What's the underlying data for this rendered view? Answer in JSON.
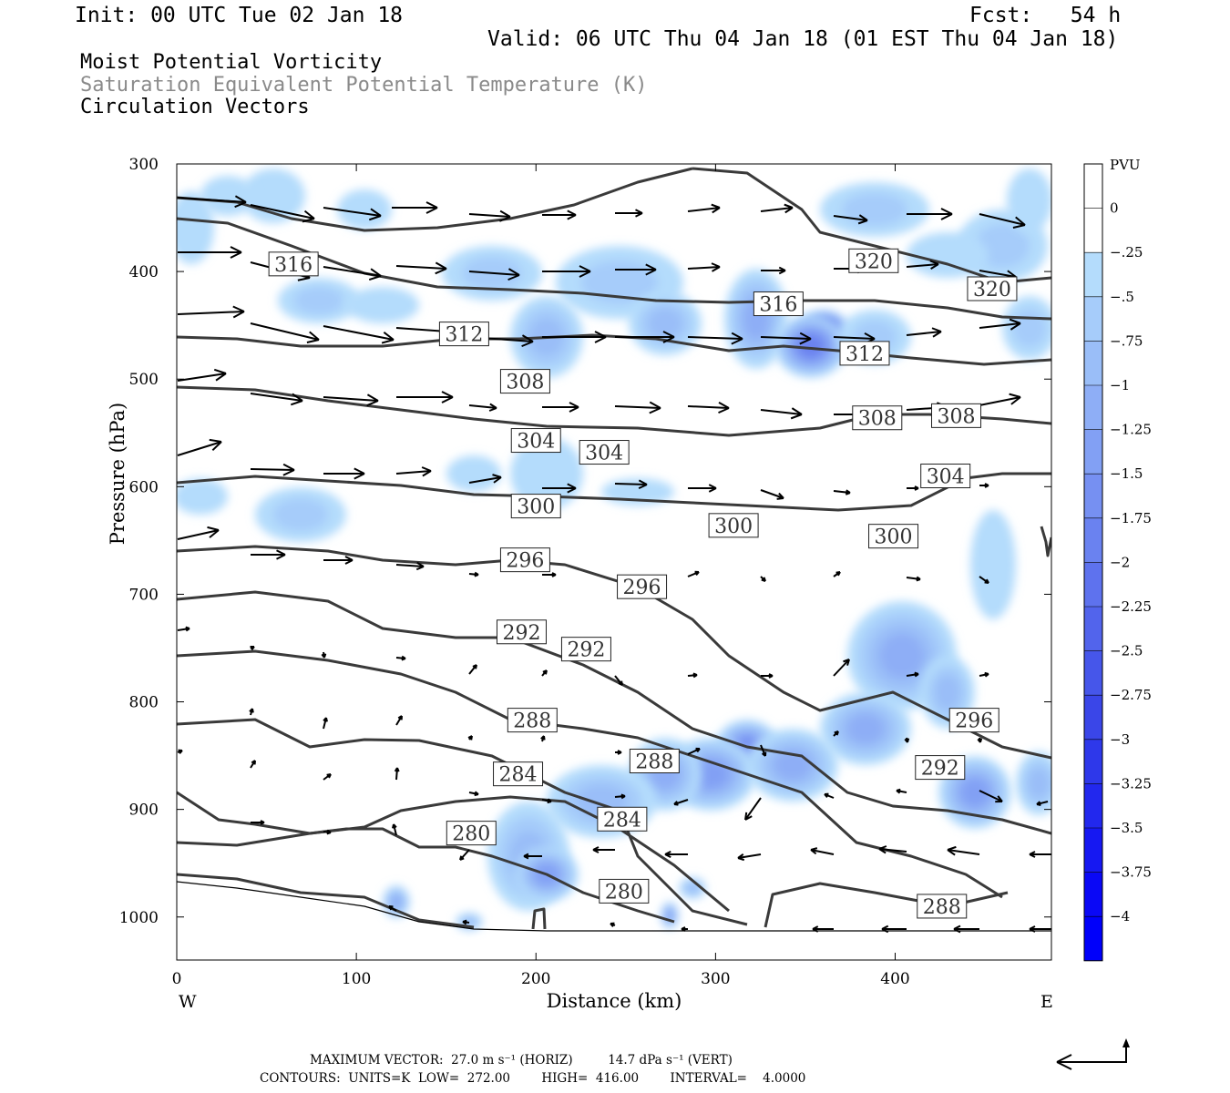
{
  "header": {
    "init": "Init: 00 UTC Tue 02 Jan 18",
    "fcst": "Fcst:   54 h",
    "valid": "Valid: 06 UTC Thu 04 Jan 18 (01 EST Thu 04 Jan 18)",
    "field1": "Moist Potential Vorticity",
    "field2": "Saturation Equivalent Potential Temperature (K)",
    "field3": "Circulation Vectors"
  },
  "footer": {
    "max_vector": "MAXIMUM VECTOR:  27.0 m s⁻¹ (HORIZ)         14.7 dPa s⁻¹ (VERT)",
    "contours": "CONTOURS:  UNITS=K  LOW=  272.00        HIGH=  416.00        INTERVAL=    4.0000"
  },
  "colors": {
    "pv_levels": [
      "#ffffff",
      "#ffffff",
      "#b4dcfc",
      "#a6ccfa",
      "#9abef8",
      "#8eaef6",
      "#82a0f4",
      "#7690f2",
      "#6a82f0",
      "#5e72ee",
      "#5264ec",
      "#4656ea",
      "#3a46e8",
      "#2e38ea",
      "#2228ee",
      "#1618f2",
      "#0a08f6",
      "#0000fa"
    ],
    "contour": "#3a3a3a",
    "vector": "#000000"
  },
  "chart_data": {
    "type": "cross-section",
    "xlabel": "Distance (km)",
    "ylabel": "Pressure (hPa)",
    "xlim": [
      0,
      487
    ],
    "ylim": [
      1040,
      300
    ],
    "x_ticks": [
      "0",
      "100",
      "200",
      "300",
      "400"
    ],
    "x_tick_values": [
      0,
      100,
      200,
      300,
      400
    ],
    "y_ticks": [
      "300",
      "400",
      "500",
      "600",
      "700",
      "800",
      "900",
      "1000"
    ],
    "y_tick_values": [
      300,
      400,
      500,
      600,
      700,
      800,
      900,
      1000
    ],
    "west_label": "W",
    "east_label": "E",
    "colorbar": {
      "unit": "PVU",
      "labels": [
        "0",
        "-.25",
        "-.5",
        "-.75",
        "-1",
        "-1.25",
        "-1.5",
        "-1.75",
        "-2",
        "-2.25",
        "-2.5",
        "-2.75",
        "-3",
        "-3.25",
        "-3.5",
        "-3.75",
        "-4"
      ]
    },
    "contour_labels": [
      {
        "text": "316",
        "x": 65,
        "p": 393
      },
      {
        "text": "312",
        "x": 160,
        "p": 458
      },
      {
        "text": "308",
        "x": 194,
        "p": 502
      },
      {
        "text": "304",
        "x": 200,
        "p": 557
      },
      {
        "text": "304",
        "x": 238,
        "p": 568
      },
      {
        "text": "300",
        "x": 200,
        "p": 618
      },
      {
        "text": "300",
        "x": 310,
        "p": 636
      },
      {
        "text": "300",
        "x": 399,
        "p": 646
      },
      {
        "text": "296",
        "x": 194,
        "p": 668
      },
      {
        "text": "296",
        "x": 259,
        "p": 693
      },
      {
        "text": "292",
        "x": 192,
        "p": 735
      },
      {
        "text": "292",
        "x": 228,
        "p": 751
      },
      {
        "text": "288",
        "x": 198,
        "p": 817
      },
      {
        "text": "288",
        "x": 266,
        "p": 855
      },
      {
        "text": "284",
        "x": 190,
        "p": 867
      },
      {
        "text": "284",
        "x": 248,
        "p": 909
      },
      {
        "text": "280",
        "x": 164,
        "p": 922
      },
      {
        "text": "280",
        "x": 249,
        "p": 976
      },
      {
        "text": "320",
        "x": 388,
        "p": 390
      },
      {
        "text": "320",
        "x": 454,
        "p": 416
      },
      {
        "text": "316",
        "x": 335,
        "p": 430
      },
      {
        "text": "312",
        "x": 383,
        "p": 476
      },
      {
        "text": "308",
        "x": 390,
        "p": 536
      },
      {
        "text": "308",
        "x": 434,
        "p": 534
      },
      {
        "text": "304",
        "x": 428,
        "p": 590
      },
      {
        "text": "296",
        "x": 444,
        "p": 817
      },
      {
        "text": "292",
        "x": 425,
        "p": 861
      },
      {
        "text": "288",
        "x": 426,
        "p": 990
      }
    ]
  }
}
